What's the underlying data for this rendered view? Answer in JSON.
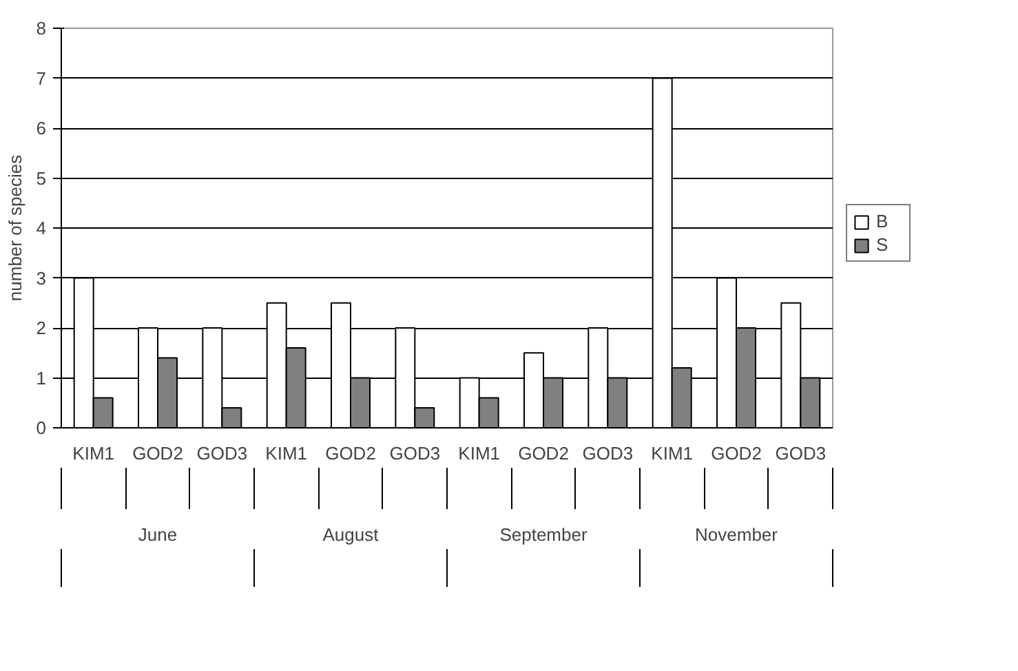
{
  "chart_data": {
    "type": "bar",
    "ylabel": "number of species",
    "categories": [
      "KIM1",
      "GOD2",
      "GOD3",
      "KIM1",
      "GOD2",
      "GOD3",
      "KIM1",
      "GOD2",
      "GOD3",
      "KIM1",
      "GOD2",
      "GOD3"
    ],
    "annotations": [
      "June",
      "August",
      "September",
      "November"
    ],
    "series": [
      {
        "name": "B",
        "color": "#ffffff",
        "values": [
          3,
          2,
          2,
          2.5,
          2.5,
          2,
          1,
          1.5,
          2,
          7,
          3,
          2.5
        ]
      },
      {
        "name": "S",
        "color": "#808080",
        "values": [
          0.6,
          1.4,
          0.4,
          1.6,
          1,
          0.4,
          0.6,
          1,
          1,
          1.2,
          2,
          1
        ]
      }
    ],
    "ylim": [
      0,
      8
    ],
    "yticks": [
      0,
      1,
      2,
      3,
      4,
      5,
      6,
      7,
      8
    ],
    "grid": "y",
    "legend": "right"
  }
}
